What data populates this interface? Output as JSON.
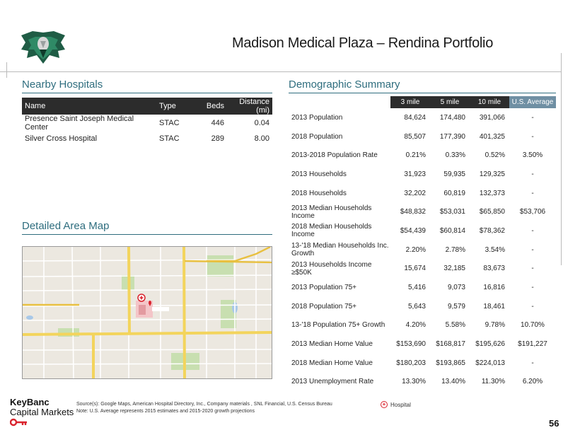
{
  "title": "Madison Medical Plaza – Rendina Portfolio",
  "nearby": {
    "heading": "Nearby Hospitals",
    "columns": [
      "Name",
      "Type",
      "Beds",
      "Distance (mi)"
    ],
    "rows": [
      [
        "Presence Saint Joseph Medical Center",
        "STAC",
        "446",
        "0.04"
      ],
      [
        "Silver Cross Hospital",
        "STAC",
        "289",
        "8.00"
      ]
    ]
  },
  "map": {
    "heading": "Detailed Area Map",
    "legend_label": "Hospital",
    "legend_symbol": "+",
    "accent_color": "#d9232d"
  },
  "demo": {
    "heading": "Demographic Summary",
    "columns": [
      "",
      "3 mile",
      "5 mile",
      "10 mile",
      "U.S. Average"
    ],
    "rows": [
      [
        "2013 Population",
        "84,624",
        "174,480",
        "391,066",
        "-"
      ],
      [
        "2018 Population",
        "85,507",
        "177,390",
        "401,325",
        "-"
      ],
      [
        "2013-2018 Population Rate",
        "0.21%",
        "0.33%",
        "0.52%",
        "3.50%"
      ],
      [
        "2013 Households",
        "31,923",
        "59,935",
        "129,325",
        "-"
      ],
      [
        "2018 Households",
        "32,202",
        "60,819",
        "132,373",
        "-"
      ],
      [
        "2013 Median Households Income",
        "$48,832",
        "$53,031",
        "$65,850",
        "$53,706"
      ],
      [
        "2018 Median Households Income",
        "$54,439",
        "$60,814",
        "$78,362",
        "-"
      ],
      [
        "13-'18 Median Households Inc. Growth",
        "2.20%",
        "2.78%",
        "3.54%",
        "-"
      ],
      [
        "2013 Households Income ≥$50K",
        "15,674",
        "32,185",
        "83,673",
        "-"
      ],
      [
        "2013 Population 75+",
        "5,416",
        "9,073",
        "16,816",
        "-"
      ],
      [
        "2018 Population 75+",
        "5,643",
        "9,579",
        "18,461",
        "-"
      ],
      [
        "13-'18 Population 75+ Growth",
        "4.20%",
        "5.58%",
        "9.78%",
        "10.70%"
      ],
      [
        "2013 Median Home Value",
        "$153,690",
        "$168,817",
        "$195,626",
        "$191,227"
      ],
      [
        "2018 Median Home Value",
        "$180,203",
        "$193,865",
        "$224,013",
        "-"
      ],
      [
        "2013 Unemployment Rate",
        "13.30%",
        "13.40%",
        "11.30%",
        "6.20%"
      ]
    ]
  },
  "footer": {
    "brand_line1": "KeyBanc",
    "brand_line2": "Capital Markets",
    "source": "Source(s): Google Maps, American Hospital Directory, Inc., Company materials , SNL Financial, U.S. Census Bureau",
    "note": "Note: U.S. Average represents 2015 estimates and 2015-2020 growth projections",
    "page": "56"
  }
}
